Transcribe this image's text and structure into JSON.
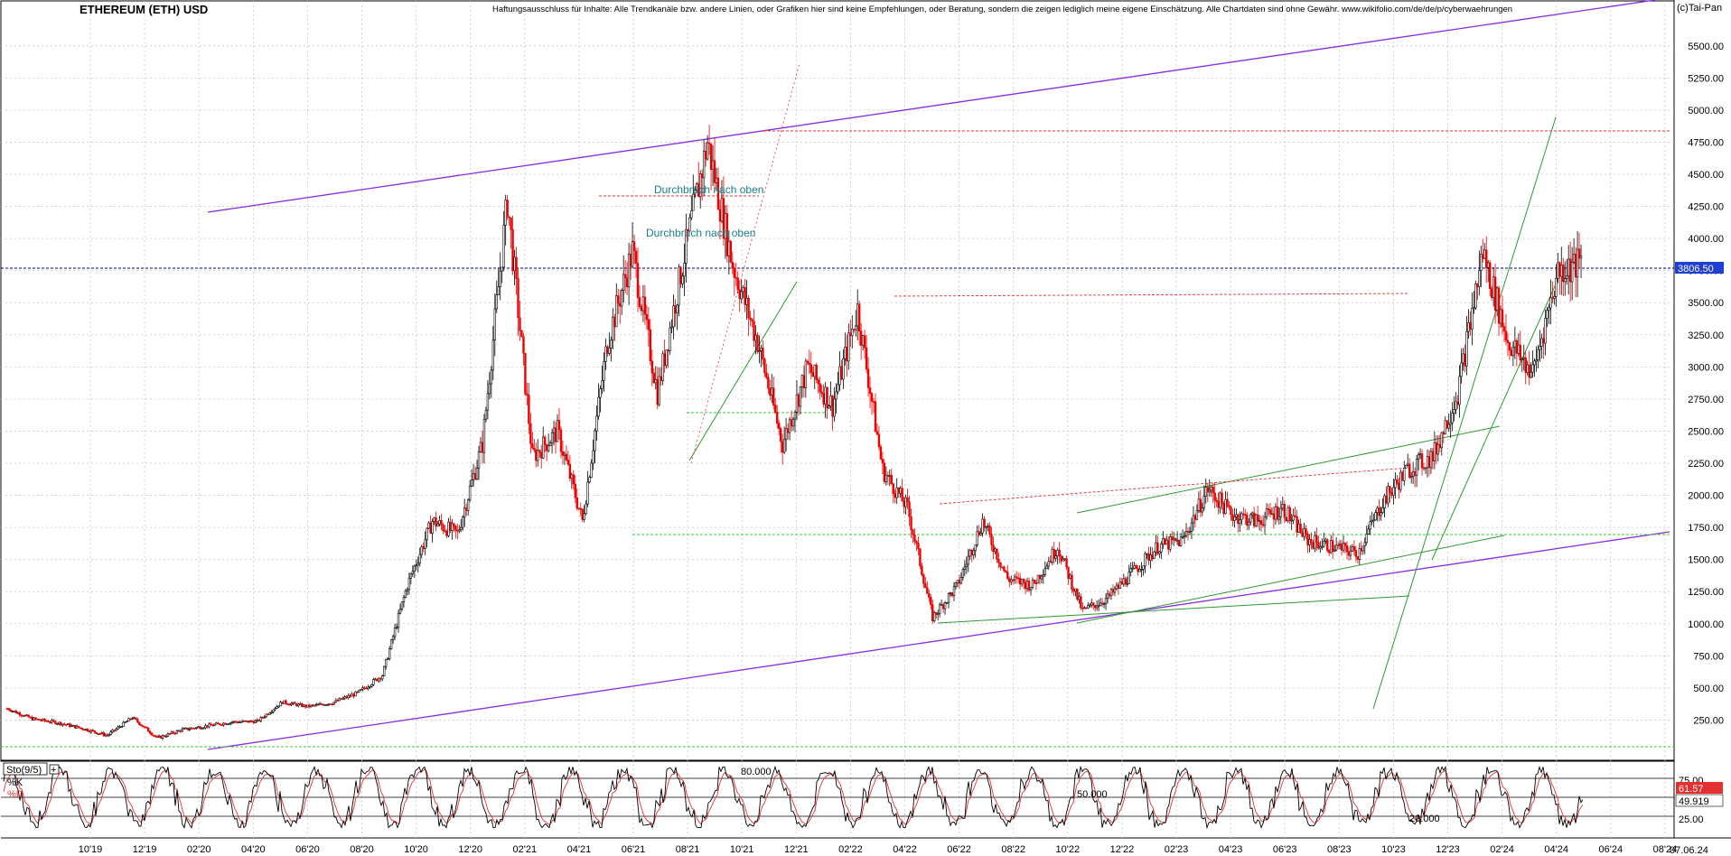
{
  "header": {
    "title": "ETHEREUM (ETH) USD",
    "disclaimer": "Haftungsausschluss für Inhalte: Alle Trendkanäle bzw. andere Linien, oder Grafiken hier sind keine Empfehlungen, oder Beratung, sondern die zeigen lediglich meine eigene Einschätzung. Alle Chartdaten sind ohne Gewähr.  www.wikifolio.com/de/de/p/cyberwaehrungen",
    "copyright": "(c)Tai-Pan"
  },
  "colors": {
    "up_candle": "#000000",
    "down_candle": "#ee0000",
    "channel_purple": "#8a2be2",
    "trend_green": "#2e9a2e",
    "level_red": "#e53030",
    "annotation_teal": "#1a7f8a",
    "price_box": "#1f3fd1"
  },
  "chart_data": [
    {
      "type": "candlestick",
      "title": "ETHEREUM (ETH) USD",
      "ylim": [
        0,
        5750
      ],
      "y_ticks": [
        "5500.00",
        "5250.00",
        "5000.00",
        "4750.00",
        "4500.00",
        "4250.00",
        "4000.00",
        "3750.00",
        "3500.00",
        "3250.00",
        "3000.00",
        "2750.00",
        "2500.00",
        "2250.00",
        "2000.00",
        "1750.00",
        "1500.00",
        "1250.00",
        "1000.00",
        "750.00",
        "500.00",
        "250.00"
      ],
      "x_ticks": [
        "10'19",
        "12'19",
        "02'20",
        "04'20",
        "06'20",
        "08'20",
        "10'20",
        "12'20",
        "02'21",
        "04'21",
        "06'21",
        "08'21",
        "10'21",
        "12'21",
        "02'22",
        "04'22",
        "06'22",
        "08'22",
        "10'22",
        "12'22",
        "02'23",
        "04'23",
        "06'23",
        "08'23",
        "10'23",
        "12'23",
        "02'24",
        "04'24",
        "06'24",
        "08'24"
      ],
      "x_end_label": "07.06.24",
      "current_price": "3806.50",
      "price_path": [
        [
          "09'19",
          340
        ],
        [
          "10'19",
          260
        ],
        [
          "11'19",
          230
        ],
        [
          "12'19",
          185
        ],
        [
          "01'20",
          130
        ],
        [
          "02'20",
          270
        ],
        [
          "03'20",
          110
        ],
        [
          "04'20",
          175
        ],
        [
          "05'20",
          205
        ],
        [
          "06'20",
          235
        ],
        [
          "07'20",
          240
        ],
        [
          "08'20",
          390
        ],
        [
          "09'20",
          355
        ],
        [
          "10'20",
          385
        ],
        [
          "11'20",
          460
        ],
        [
          "12'20",
          600
        ],
        [
          "01'21",
          1300
        ],
        [
          "02'21",
          1800
        ],
        [
          "03'21",
          1700
        ],
        [
          "04'21",
          2400
        ],
        [
          "05'21",
          4300
        ],
        [
          "05'21b",
          2300
        ],
        [
          "06'21",
          2500
        ],
        [
          "07'21",
          1800
        ],
        [
          "08'21",
          3200
        ],
        [
          "09'21",
          3900
        ],
        [
          "09'21b",
          2800
        ],
        [
          "10'21",
          3800
        ],
        [
          "11'21",
          4750
        ],
        [
          "12'21",
          3800
        ],
        [
          "01'22",
          3200
        ],
        [
          "01'22b",
          2400
        ],
        [
          "02'22",
          3000
        ],
        [
          "03'22",
          2700
        ],
        [
          "04'22",
          3450
        ],
        [
          "05'22",
          2200
        ],
        [
          "06'22",
          1900
        ],
        [
          "06'22b",
          1050
        ],
        [
          "07'22",
          1300
        ],
        [
          "08'22",
          1800
        ],
        [
          "09'22",
          1350
        ],
        [
          "10'22",
          1300
        ],
        [
          "11'22",
          1600
        ],
        [
          "11'22b",
          1100
        ],
        [
          "12'22",
          1200
        ],
        [
          "01'23",
          1400
        ],
        [
          "02'23",
          1600
        ],
        [
          "03'23",
          1650
        ],
        [
          "04'23",
          2050
        ],
        [
          "05'23",
          1850
        ],
        [
          "06'23",
          1800
        ],
        [
          "07'23",
          1900
        ],
        [
          "08'23",
          1650
        ],
        [
          "09'23",
          1600
        ],
        [
          "10'23",
          1550
        ],
        [
          "11'23",
          1950
        ],
        [
          "12'23",
          2200
        ],
        [
          "01'24",
          2300
        ],
        [
          "02'24",
          2800
        ],
        [
          "03'24",
          3900
        ],
        [
          "04'24",
          3200
        ],
        [
          "05'24",
          2950
        ],
        [
          "05'24b",
          3750
        ],
        [
          "06'24",
          3806.5
        ]
      ],
      "annotations": [
        {
          "text": "Durchbruch nach oben",
          "y": 4400
        },
        {
          "text": "Durchbruch nach oben",
          "y": 4070
        }
      ],
      "levels": [
        4870,
        3806.5,
        1730,
        80
      ]
    },
    {
      "type": "line",
      "title": "Sto(9/5)",
      "ylim": [
        0,
        100
      ],
      "series": [
        {
          "name": "%K",
          "latest": "61.57"
        },
        {
          "name": "%D",
          "latest": "49.919"
        }
      ],
      "y_ticks": [
        "75.00",
        "25.00"
      ],
      "ref_labels": [
        "80.000",
        "50.000",
        "20.000"
      ],
      "ref_levels": [
        80,
        50,
        20
      ]
    }
  ]
}
